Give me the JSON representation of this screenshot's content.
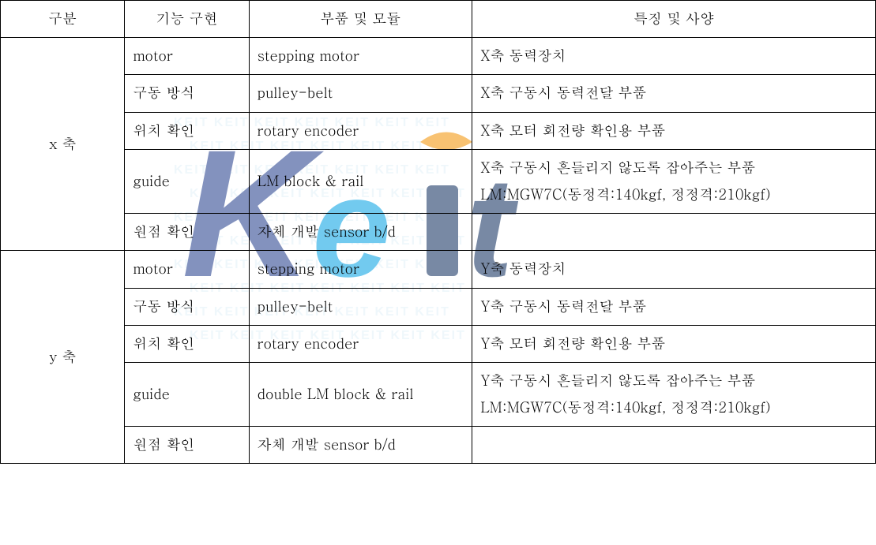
{
  "watermark": {
    "text_repeat": "KEIT",
    "k_color": "#1e3a8a",
    "e_accent_color": "#009fe3",
    "dot_color": "#f39200",
    "i_color": "#0b2a5b",
    "t_color": "#0b2a5b",
    "background_text_color": "#cfe8f3"
  },
  "table": {
    "headers": {
      "col1": "구분",
      "col2": "기능 구현",
      "col3": "부품 및 모듈",
      "col4": "특징 및 사양"
    },
    "groups": [
      {
        "label": "x 축",
        "rows": [
          {
            "func": "motor",
            "parts": "stepping motor",
            "spec": "X축 동력장치"
          },
          {
            "func": "구동 방식",
            "parts": "pulley-belt",
            "spec": "X축 구동시 동력전달 부품"
          },
          {
            "func": "위치 확인",
            "parts": "rotary encoder",
            "spec": "X축 모터 회전량 확인용 부품"
          },
          {
            "func": "guide",
            "parts": "LM block & rail",
            "spec": "X축 구동시 흔들리지 않도록 잡아주는 부품\nLM:MGW7C(동정격:140kgf, 정정격:210kgf)"
          },
          {
            "func": "원점 확인",
            "parts": "자체 개발 sensor b/d",
            "spec": ""
          }
        ]
      },
      {
        "label": "y 축",
        "rows": [
          {
            "func": "motor",
            "parts": "stepping motor",
            "spec": "Y축 동력장치"
          },
          {
            "func": "구동 방식",
            "parts": "pulley-belt",
            "spec": "Y축 구동시 동력전달 부품"
          },
          {
            "func": "위치 확인",
            "parts": "rotary encoder",
            "spec": "Y축 모터 회전량 확인용 부품"
          },
          {
            "func": "guide",
            "parts": "double LM block & rail",
            "spec": "Y축 구동시 흔들리지 않도록 잡아주는 부품\nLM:MGW7C(동정격:140kgf, 정정격:210kgf)"
          },
          {
            "func": "원점 확인",
            "parts": "자체 개발 sensor b/d",
            "spec": ""
          }
        ]
      }
    ],
    "border_color": "#000000",
    "background_color": "#ffffff",
    "font_size_pt": 14,
    "line_height": 1.9,
    "col_widths_pct": [
      14.2,
      14.2,
      25.5,
      46.1
    ]
  }
}
